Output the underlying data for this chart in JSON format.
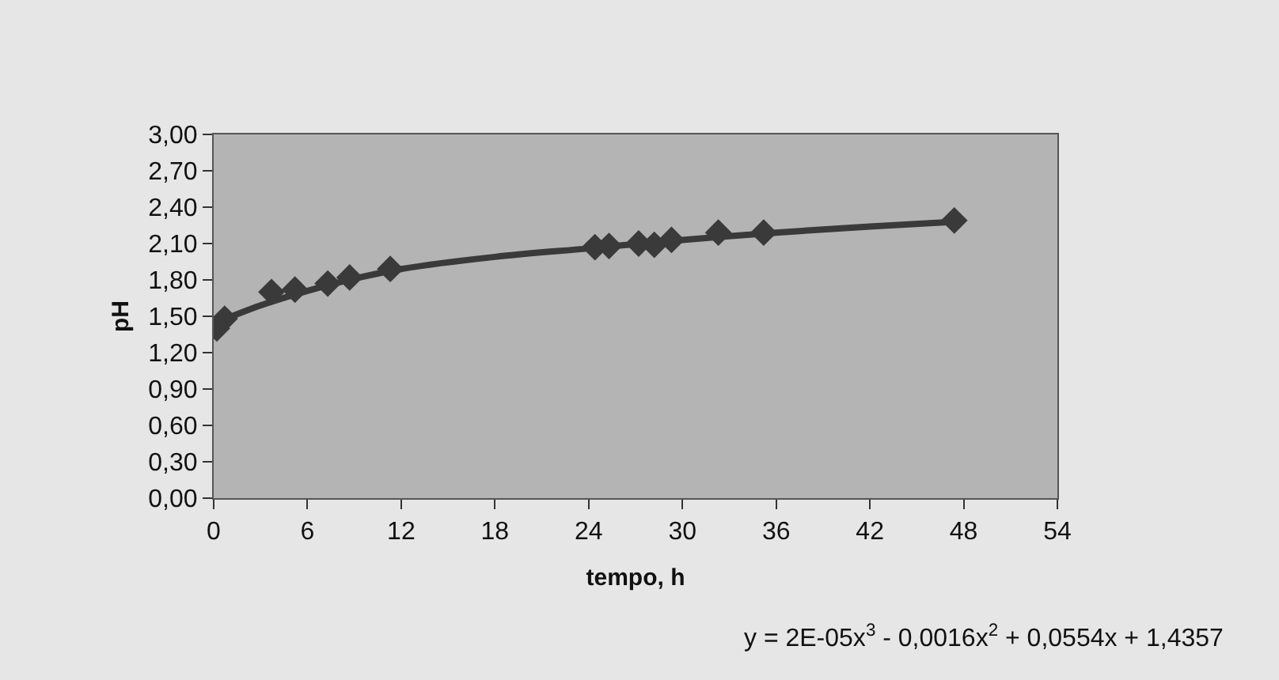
{
  "chart_data": {
    "type": "scatter",
    "xlabel": "tempo, h",
    "ylabel": "pH",
    "xlim": [
      0,
      54
    ],
    "xticks": [
      0,
      6,
      12,
      18,
      24,
      30,
      36,
      42,
      48,
      54
    ],
    "ylim": [
      0,
      3
    ],
    "yticks": [
      {
        "value": 0,
        "label": "0,00"
      },
      {
        "value": 0.3,
        "label": "0,30"
      },
      {
        "value": 0.6,
        "label": "0,60"
      },
      {
        "value": 0.9,
        "label": "0,90"
      },
      {
        "value": 1.2,
        "label": "1,20"
      },
      {
        "value": 1.5,
        "label": "1,50"
      },
      {
        "value": 1.8,
        "label": "1,80"
      },
      {
        "value": 2.1,
        "label": "2,10"
      },
      {
        "value": 2.4,
        "label": "2,40"
      },
      {
        "value": 2.7,
        "label": "2,70"
      },
      {
        "value": 3.0,
        "label": "3,00"
      }
    ],
    "grid": false,
    "marker": "diamond",
    "series": [
      {
        "color": "#3a3a3a",
        "x": [
          0.2,
          0.7,
          3.7,
          5.2,
          7.3,
          8.7,
          11.3,
          24.4,
          25.3,
          27.2,
          28.2,
          29.3,
          32.3,
          35.2,
          47.4
        ],
        "values": [
          1.4,
          1.48,
          1.7,
          1.72,
          1.77,
          1.82,
          1.89,
          2.07,
          2.08,
          2.1,
          2.09,
          2.13,
          2.19,
          2.19,
          2.29
        ]
      },
      {
        "type": "line",
        "marker": "none",
        "color": "#3a3a3a",
        "line_style": "solid",
        "x": [
          0,
          3,
          6,
          9,
          12,
          18,
          24,
          30,
          36,
          42,
          47.4
        ],
        "values": [
          1.44,
          1.59,
          1.71,
          1.81,
          1.89,
          1.99,
          2.06,
          2.13,
          2.19,
          2.24,
          2.28
        ]
      }
    ],
    "annotations": [
      "y = 2E-05x$^{3}$ - 0,0016x$^{2}$ + 0,0554x + 1,4357"
    ]
  }
}
